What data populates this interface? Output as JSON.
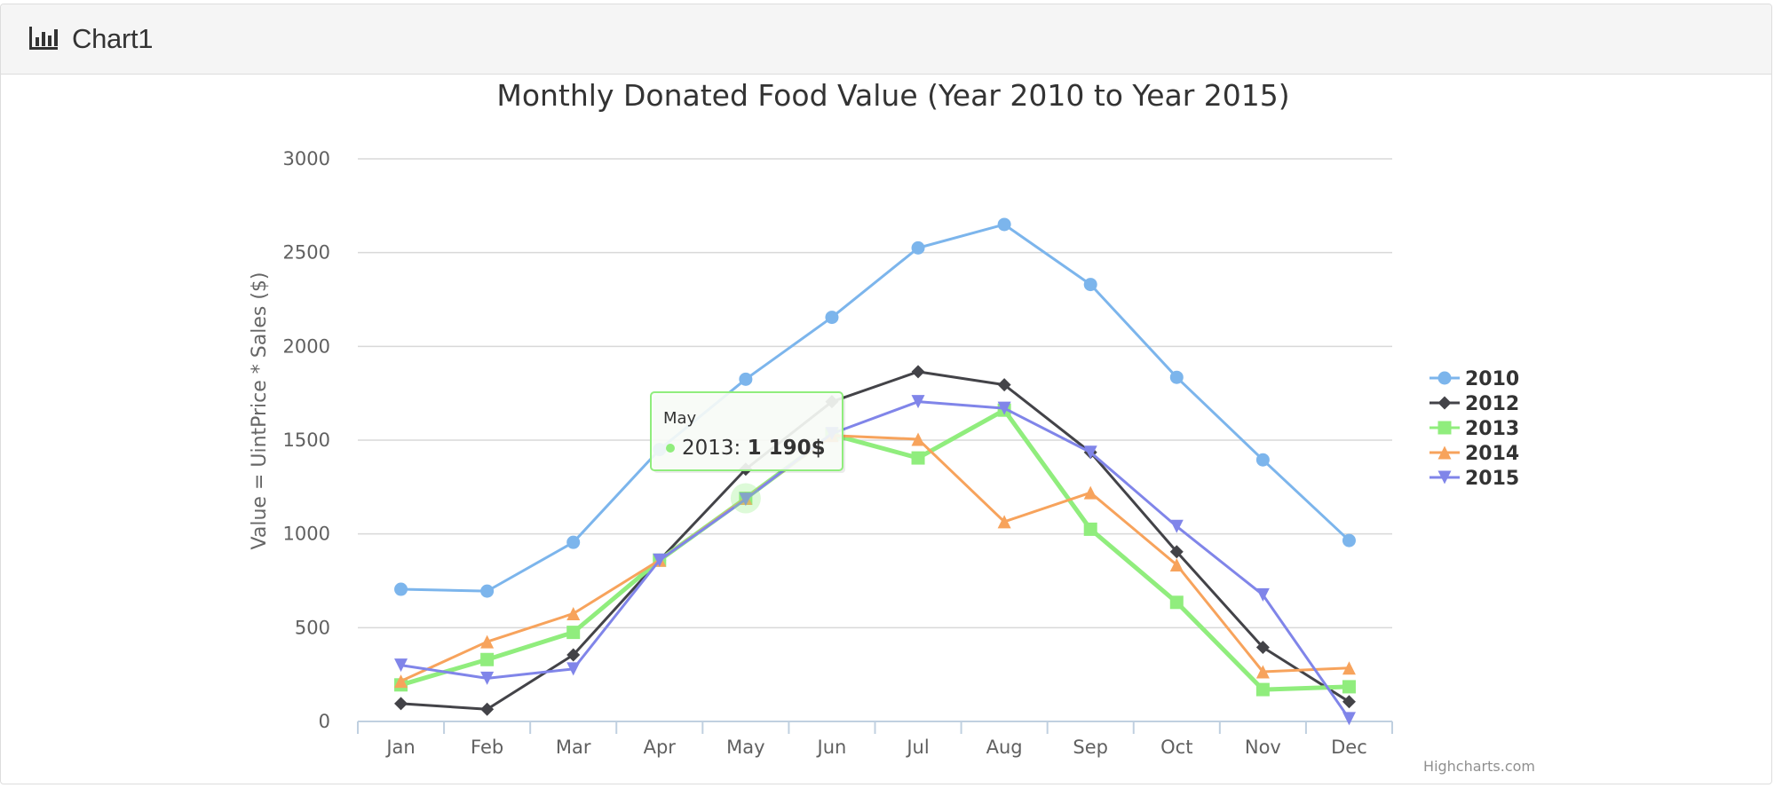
{
  "panel": {
    "title": "Chart1",
    "icon": "bar-chart-icon"
  },
  "chart_data": {
    "type": "line",
    "title": "Monthly Donated Food Value (Year 2010 to Year 2015)",
    "ylabel": "Value = UintPrice * Sales ($)",
    "xlabel": "",
    "ylim": [
      0,
      3000
    ],
    "yticks": [
      "0",
      "500",
      "1000",
      "1500",
      "2000",
      "2500",
      "3000"
    ],
    "categories": [
      "Jan",
      "Feb",
      "Mar",
      "Apr",
      "May",
      "Jun",
      "Jul",
      "Aug",
      "Sep",
      "Oct",
      "Nov",
      "Dec"
    ],
    "grid": true,
    "legend_position": "right",
    "credits": "Highcharts.com",
    "series": [
      {
        "name": "2010",
        "color": "#7cb5ec",
        "marker": "circle",
        "values": [
          705,
          695,
          955,
          1450,
          1825,
          2155,
          2525,
          2650,
          2330,
          1835,
          1395,
          965
        ]
      },
      {
        "name": "2012",
        "color": "#434348",
        "marker": "diamond",
        "values": [
          95,
          65,
          355,
          860,
          1345,
          1705,
          1865,
          1795,
          1435,
          905,
          395,
          105
        ]
      },
      {
        "name": "2013",
        "color": "#90ed7d",
        "marker": "square",
        "values": [
          195,
          330,
          475,
          860,
          1190,
          1530,
          1405,
          1660,
          1025,
          635,
          170,
          185
        ]
      },
      {
        "name": "2014",
        "color": "#f7a35c",
        "marker": "triangle",
        "values": [
          215,
          425,
          575,
          860,
          1190,
          1525,
          1505,
          1065,
          1220,
          835,
          265,
          285
        ]
      },
      {
        "name": "2015",
        "color": "#8085e9",
        "marker": "triangle-down",
        "values": [
          300,
          230,
          280,
          860,
          1185,
          1535,
          1705,
          1670,
          1435,
          1040,
          675,
          15
        ]
      }
    ],
    "tooltip": {
      "header": "May",
      "series": "2013",
      "value": "1 190$"
    }
  }
}
